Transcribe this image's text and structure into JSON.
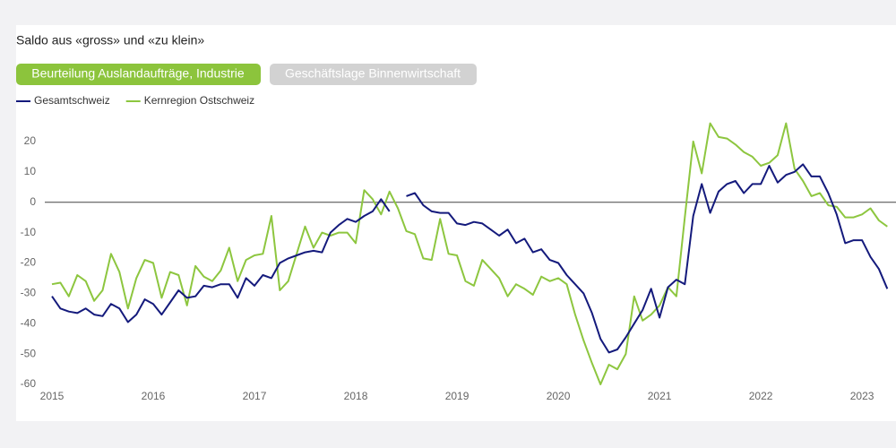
{
  "header": {
    "subtitle": "Saldo aus «gross» und «zu klein»"
  },
  "tabs": [
    "Beurteilung Auslandaufträge, Industrie",
    "Geschäftslage Binnenwirtschaft"
  ],
  "chart_data": {
    "type": "line",
    "x": [
      2015,
      2015.0833,
      2015.1667,
      2015.25,
      2015.3333,
      2015.4167,
      2015.5,
      2015.5833,
      2015.6667,
      2015.75,
      2015.8333,
      2015.9167,
      2016,
      2016.0833,
      2016.1667,
      2016.25,
      2016.3333,
      2016.4167,
      2016.5,
      2016.5833,
      2016.6667,
      2016.75,
      2016.8333,
      2016.9167,
      2017,
      2017.0833,
      2017.1667,
      2017.25,
      2017.3333,
      2017.4167,
      2017.5,
      2017.5833,
      2017.6667,
      2017.75,
      2017.8333,
      2017.9167,
      2018,
      2018.0833,
      2018.1667,
      2018.25,
      2018.3333,
      2018.4167,
      2018.5,
      2018.5833,
      2018.6667,
      2018.75,
      2018.8333,
      2018.9167,
      2019,
      2019.0833,
      2019.1667,
      2019.25,
      2019.3333,
      2019.4167,
      2019.5,
      2019.5833,
      2019.6667,
      2019.75,
      2019.8333,
      2019.9167,
      2020,
      2020.0833,
      2020.1667,
      2020.25,
      2020.3333,
      2020.4167,
      2020.5,
      2020.5833,
      2020.6667,
      2020.75,
      2020.8333,
      2020.9167,
      2021,
      2021.0833,
      2021.1667,
      2021.25,
      2021.3333,
      2021.4167,
      2021.5,
      2021.5833,
      2021.6667,
      2021.75,
      2021.8333,
      2021.9167,
      2022,
      2022.0833,
      2022.1667,
      2022.25,
      2022.3333,
      2022.4167,
      2022.5,
      2022.5833,
      2022.6667,
      2022.75,
      2022.8333,
      2022.9167,
      2023,
      2023.0833,
      2023.1667,
      2023.25
    ],
    "series": [
      {
        "name": "Gesamtschweiz",
        "color": "#141a7c",
        "values": [
          -31,
          -35,
          -36,
          -36.5,
          -35,
          -37,
          -37.5,
          -33.5,
          -35,
          -39.5,
          -37,
          -32,
          -33.5,
          -37,
          -33,
          -29,
          -31.5,
          -31,
          -27.5,
          -28,
          -27,
          -27,
          -31.5,
          -25,
          -27.5,
          -24,
          -25,
          -20,
          -18.5,
          -17.5,
          -16.5,
          -16,
          -16.5,
          -10,
          -7.5,
          -5.5,
          -6.5,
          -4.5,
          -3,
          1,
          -3,
          null,
          2,
          3,
          -1,
          -3,
          -3.5,
          -3.5,
          -7,
          -7.5,
          -6.5,
          -7,
          -9,
          -11,
          -9,
          -13.5,
          -12,
          -16.5,
          -15.5,
          -19,
          -20,
          -24,
          -27,
          -30,
          -36.5,
          -45,
          -49.5,
          -48.5,
          -44.5,
          -40,
          -35.5,
          -28.5,
          -38,
          -28,
          -25.5,
          -27,
          -4.5,
          6,
          -3.5,
          3.5,
          6,
          7,
          3,
          6,
          6,
          12,
          6.5,
          9,
          10,
          12.5,
          8.5,
          8.5,
          3,
          -4,
          -13.5,
          -12.5,
          -12.5,
          -18,
          -22,
          -28.5
        ]
      },
      {
        "name": "Kernregion Ostschweiz",
        "color": "#8dc63f",
        "values": [
          -27,
          -26.5,
          -31,
          -24,
          -26,
          -32.5,
          -29,
          -17,
          -23,
          -35,
          -25,
          -19,
          -20,
          -31.5,
          -23,
          -24,
          -34,
          -21,
          -24.5,
          -26,
          -22.5,
          -15,
          -26,
          -19,
          -17.5,
          -17,
          -4.5,
          -29,
          -26,
          -17,
          -8,
          -15,
          -10,
          -11,
          -10,
          -10,
          -13.5,
          4,
          1,
          -4,
          3.5,
          -2,
          -9.5,
          -10.5,
          -18.5,
          -19,
          -5.5,
          -17,
          -17.5,
          -26,
          -27.5,
          -19,
          -22,
          -25,
          -31,
          -27,
          -28.5,
          -30.5,
          -24.5,
          -26,
          -25,
          -27,
          -37,
          -45.5,
          -53,
          -60,
          -53.5,
          -55,
          -50,
          -31,
          -39,
          -37,
          -34,
          -28,
          -31,
          -5,
          20,
          9.5,
          26,
          21.5,
          21,
          19,
          16.5,
          15,
          12,
          13,
          15.5,
          26,
          11,
          7,
          2,
          3,
          -1,
          -1.5,
          -5,
          -5,
          -4,
          -2,
          -6,
          -8
        ]
      }
    ],
    "xlim": [
      2015,
      2023.3
    ],
    "xticks": [
      2015,
      2016,
      2017,
      2018,
      2019,
      2020,
      2021,
      2022,
      2023
    ],
    "ylim": [
      -60,
      25
    ],
    "yticks": [
      -60,
      -50,
      -40,
      -30,
      -20,
      -10,
      0,
      10,
      20
    ],
    "grid": false,
    "legend": "top-left"
  }
}
